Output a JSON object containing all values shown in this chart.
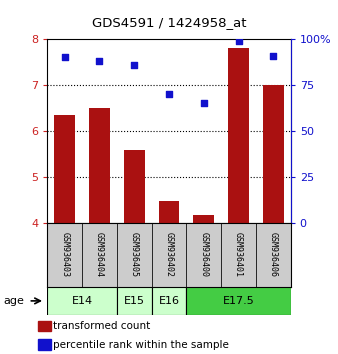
{
  "title": "GDS4591 / 1424958_at",
  "samples": [
    "GSM936403",
    "GSM936404",
    "GSM936405",
    "GSM936402",
    "GSM936400",
    "GSM936401",
    "GSM936406"
  ],
  "transformed_counts": [
    6.35,
    6.5,
    5.58,
    4.47,
    4.17,
    7.8,
    7.0
  ],
  "percentile_ranks": [
    90,
    88,
    86,
    70,
    65,
    99,
    91
  ],
  "bar_color": "#aa1111",
  "dot_color": "#1111cc",
  "ylim_left": [
    4,
    8
  ],
  "ylim_right": [
    0,
    100
  ],
  "yticks_left": [
    4,
    5,
    6,
    7,
    8
  ],
  "yticks_right": [
    0,
    25,
    50,
    75,
    100
  ],
  "yticklabels_right": [
    "0",
    "25",
    "50",
    "75",
    "100%"
  ],
  "sample_box_color": "#cccccc",
  "legend_bar_label": "transformed count",
  "legend_dot_label": "percentile rank within the sample",
  "left_tick_color": "#cc2222",
  "right_tick_color": "#1111cc",
  "age_groups": [
    {
      "label": "E14",
      "start": 0,
      "end": 1,
      "color": "#ccffcc"
    },
    {
      "label": "E15",
      "start": 2,
      "end": 2,
      "color": "#ccffcc"
    },
    {
      "label": "E16",
      "start": 3,
      "end": 3,
      "color": "#ccffcc"
    },
    {
      "label": "E17.5",
      "start": 4,
      "end": 6,
      "color": "#44cc44"
    }
  ]
}
